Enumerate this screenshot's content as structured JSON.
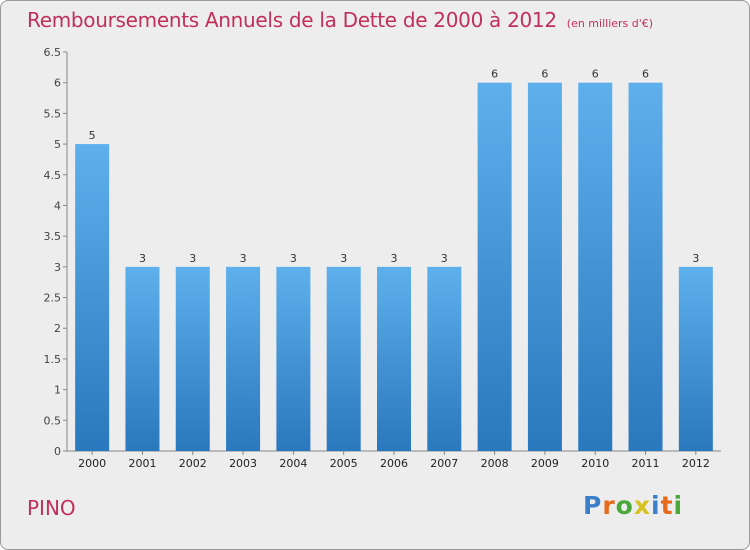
{
  "header": {
    "title": "Remboursements Annuels de la Dette de 2000 à 2012",
    "unit": "(en milliers d'€)"
  },
  "footer": {
    "commune": "PINO",
    "logo_letters": [
      "P",
      "r",
      "o",
      "x",
      "i",
      "t",
      "i"
    ],
    "logo_colors": [
      "#3a7fc8",
      "#e86a1c",
      "#4aa83a",
      "#d8c21f",
      "#3a7fc8",
      "#e86a1c",
      "#4aa83a"
    ]
  },
  "chart_data": {
    "type": "bar",
    "categories": [
      "2000",
      "2001",
      "2002",
      "2003",
      "2004",
      "2005",
      "2006",
      "2007",
      "2008",
      "2009",
      "2010",
      "2011",
      "2012"
    ],
    "values": [
      5,
      3,
      3,
      3,
      3,
      3,
      3,
      3,
      6,
      6,
      6,
      6,
      3
    ],
    "ylim": [
      0,
      6.5
    ],
    "yticks": [
      "0",
      "0.5",
      "1",
      "1.5",
      "2",
      "2.5",
      "3",
      "3.5",
      "4",
      "4.5",
      "5",
      "5.5",
      "6",
      "6.5"
    ],
    "bar_color": "#3a8fd4",
    "grid": false
  }
}
